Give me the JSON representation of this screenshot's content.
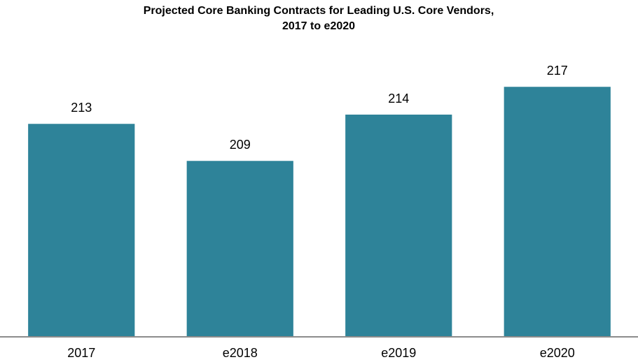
{
  "chart_data": {
    "type": "bar",
    "title": [
      "Projected Core Banking Contracts for Leading U.S. Core Vendors,",
      "2017 to e2020"
    ],
    "categories": [
      "2017",
      "e2018",
      "e2019",
      "e2020"
    ],
    "values": [
      213,
      209,
      214,
      217
    ],
    "color": "#2e8399",
    "ylim": [
      190,
      220
    ]
  }
}
